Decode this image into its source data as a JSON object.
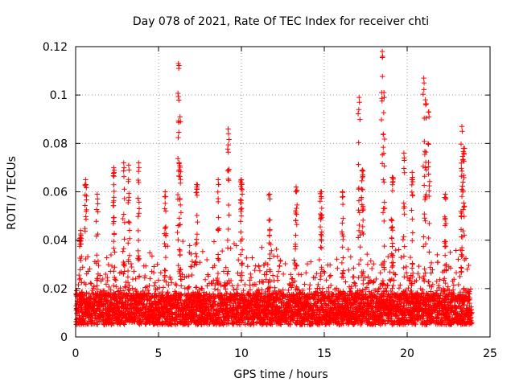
{
  "chart_data": {
    "type": "scatter",
    "title": "Day 078 of 2021, Rate Of TEC Index for receiver chti",
    "xlabel": "GPS time / hours",
    "ylabel": "ROTI / TECUs",
    "xlim": [
      0,
      25
    ],
    "ylim": [
      0,
      0.12
    ],
    "xticks": [
      0,
      5,
      10,
      15,
      20,
      25
    ],
    "xtick_labels": [
      "0",
      "5",
      "10",
      "15",
      "20",
      "25"
    ],
    "yticks": [
      0,
      0.02,
      0.04,
      0.06,
      0.08,
      0.1,
      0.12
    ],
    "ytick_labels": [
      "0",
      "0.02",
      "0.04",
      "0.06",
      "0.08",
      "0.1",
      "0.12"
    ],
    "grid": true,
    "marker": "+",
    "color": "#ff0000",
    "series": [
      {
        "name": "ROTI",
        "x_range": [
          0,
          23.9
        ],
        "baseline_band": [
          0.005,
          0.018
        ],
        "typical_max": 0.04,
        "peaks": [
          {
            "x": 0.3,
            "y": 0.044
          },
          {
            "x": 0.6,
            "y": 0.065
          },
          {
            "x": 1.3,
            "y": 0.059
          },
          {
            "x": 2.3,
            "y": 0.07
          },
          {
            "x": 2.9,
            "y": 0.072
          },
          {
            "x": 3.2,
            "y": 0.071
          },
          {
            "x": 3.8,
            "y": 0.072
          },
          {
            "x": 5.4,
            "y": 0.06
          },
          {
            "x": 6.2,
            "y": 0.113
          },
          {
            "x": 6.3,
            "y": 0.091
          },
          {
            "x": 7.3,
            "y": 0.063
          },
          {
            "x": 8.6,
            "y": 0.065
          },
          {
            "x": 9.2,
            "y": 0.086
          },
          {
            "x": 10.0,
            "y": 0.065
          },
          {
            "x": 11.7,
            "y": 0.059
          },
          {
            "x": 13.3,
            "y": 0.062
          },
          {
            "x": 14.8,
            "y": 0.06
          },
          {
            "x": 16.1,
            "y": 0.06
          },
          {
            "x": 17.1,
            "y": 0.099
          },
          {
            "x": 17.3,
            "y": 0.069
          },
          {
            "x": 18.5,
            "y": 0.118
          },
          {
            "x": 18.6,
            "y": 0.101
          },
          {
            "x": 19.1,
            "y": 0.066
          },
          {
            "x": 19.8,
            "y": 0.076
          },
          {
            "x": 20.3,
            "y": 0.068
          },
          {
            "x": 21.0,
            "y": 0.107
          },
          {
            "x": 21.1,
            "y": 0.098
          },
          {
            "x": 21.3,
            "y": 0.093
          },
          {
            "x": 22.3,
            "y": 0.059
          },
          {
            "x": 23.3,
            "y": 0.087
          },
          {
            "x": 23.4,
            "y": 0.078
          }
        ]
      }
    ]
  }
}
